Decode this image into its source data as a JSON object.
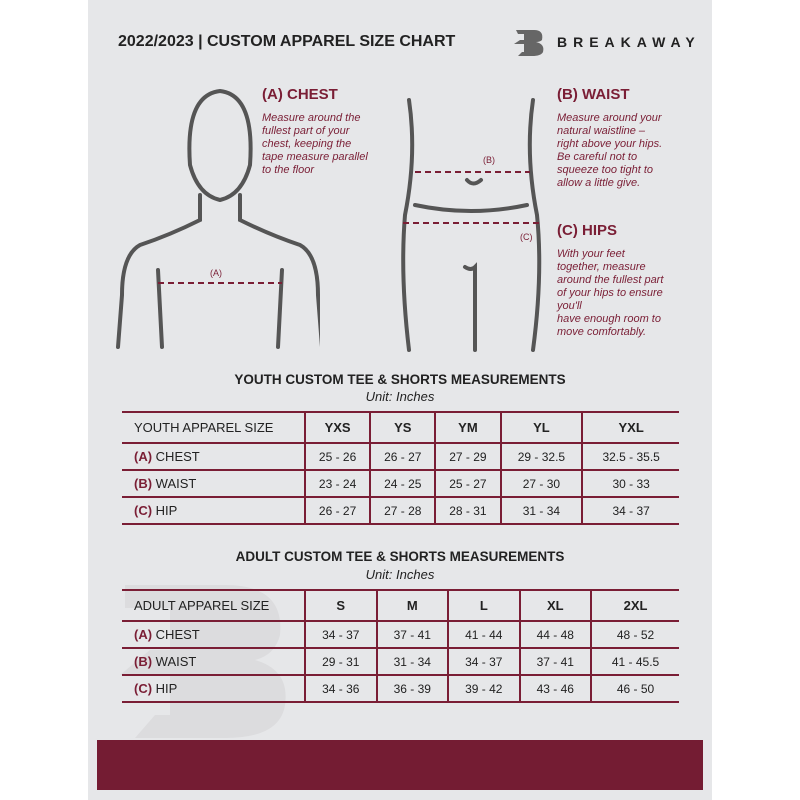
{
  "header": {
    "title": "2022/2023 | CUSTOM APPAREL SIZE CHART",
    "brand": "BREAKAWAY"
  },
  "measures": {
    "chest": {
      "heading": "(A) CHEST",
      "label": "(A)",
      "text": "Measure around the\nfullest part of your\nchest, keeping the\ntape measure parallel\nto the floor"
    },
    "waist": {
      "heading": "(B) WAIST",
      "label": "(B)",
      "text": "Measure around your\nnatural waistline –\nright above your hips.\nBe careful not to\nsqueeze too tight to\nallow a little give."
    },
    "hips": {
      "heading": "(C) HIPS",
      "label": "(C)",
      "text": "With your feet\ntogether, measure\naround the fullest part\nof your hips to ensure\nyou'll\nhave enough room to\nmove comfortably."
    }
  },
  "youth": {
    "title": "YOUTH CUSTOM TEE & SHORTS MEASUREMENTS",
    "unit": "Unit: Inches",
    "header": "YOUTH APPAREL SIZE",
    "sizes": [
      "YXS",
      "YS",
      "YM",
      "YL",
      "YXL"
    ],
    "rows": [
      {
        "letter": "(A)",
        "name": "CHEST",
        "values": [
          "25 - 26",
          "26 - 27",
          "27 - 29",
          "29 - 32.5",
          "32.5 - 35.5"
        ]
      },
      {
        "letter": "(B)",
        "name": "WAIST",
        "values": [
          "23 - 24",
          "24 - 25",
          "25 - 27",
          "27 - 30",
          "30 - 33"
        ]
      },
      {
        "letter": "(C)",
        "name": "HIP",
        "values": [
          "26 - 27",
          "27 - 28",
          "28 - 31",
          "31 - 34",
          "34 - 37"
        ]
      }
    ]
  },
  "adult": {
    "title": "ADULT CUSTOM TEE & SHORTS MEASUREMENTS",
    "unit": "Unit: Inches",
    "header": "ADULT APPAREL SIZE",
    "sizes": [
      "S",
      "M",
      "L",
      "XL",
      "2XL"
    ],
    "rows": [
      {
        "letter": "(A)",
        "name": "CHEST",
        "values": [
          "34 - 37",
          "37 - 41",
          "41 - 44",
          "44 - 48",
          "48 - 52"
        ]
      },
      {
        "letter": "(B)",
        "name": "WAIST",
        "values": [
          "29 - 31",
          "31 - 34",
          "34 - 37",
          "37 - 41",
          "41 - 45.5"
        ]
      },
      {
        "letter": "(C)",
        "name": "HIP",
        "values": [
          "34 - 36",
          "36 - 39",
          "39 - 42",
          "43 - 46",
          "46 - 50"
        ]
      }
    ]
  },
  "colors": {
    "accent": "#7a1e35",
    "background": "#e6e7e9"
  }
}
